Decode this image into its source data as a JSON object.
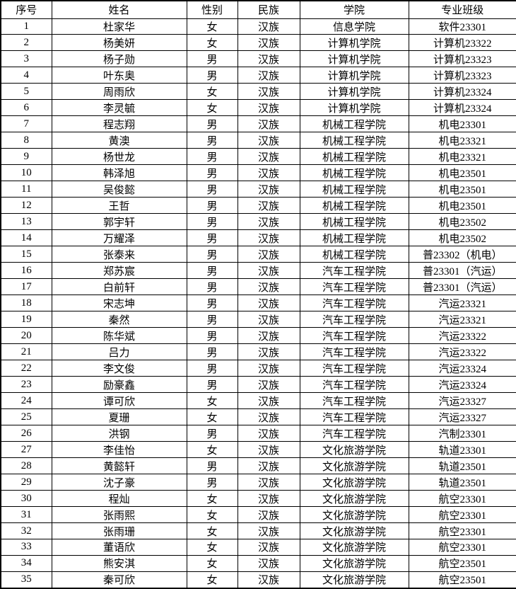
{
  "table": {
    "title": "student-roster",
    "colors": {
      "border": "#000000",
      "background": "#ffffff",
      "text": "#000000"
    },
    "columns": [
      "序号",
      "姓名",
      "性别",
      "民族",
      "学院",
      "专业班级"
    ],
    "rows": [
      [
        "1",
        "杜家华",
        "女",
        "汉族",
        "信息学院",
        "软件23301"
      ],
      [
        "2",
        "杨美妍",
        "女",
        "汉族",
        "计算机学院",
        "计算机23322"
      ],
      [
        "3",
        "杨子勋",
        "男",
        "汉族",
        "计算机学院",
        "计算机23323"
      ],
      [
        "4",
        "叶东奥",
        "男",
        "汉族",
        "计算机学院",
        "计算机23323"
      ],
      [
        "5",
        "周雨欣",
        "女",
        "汉族",
        "计算机学院",
        "计算机23324"
      ],
      [
        "6",
        "李灵毓",
        "女",
        "汉族",
        "计算机学院",
        "计算机23324"
      ],
      [
        "7",
        "程志翔",
        "男",
        "汉族",
        "机械工程学院",
        "机电23301"
      ],
      [
        "8",
        "黄澳",
        "男",
        "汉族",
        "机械工程学院",
        "机电23321"
      ],
      [
        "9",
        "杨世龙",
        "男",
        "汉族",
        "机械工程学院",
        "机电23321"
      ],
      [
        "10",
        "韩泽旭",
        "男",
        "汉族",
        "机械工程学院",
        "机电23501"
      ],
      [
        "11",
        "吴俊懿",
        "男",
        "汉族",
        "机械工程学院",
        "机电23501"
      ],
      [
        "12",
        "王哲",
        "男",
        "汉族",
        "机械工程学院",
        "机电23501"
      ],
      [
        "13",
        "郭宇轩",
        "男",
        "汉族",
        "机械工程学院",
        "机电23502"
      ],
      [
        "14",
        "万耀泽",
        "男",
        "汉族",
        "机械工程学院",
        "机电23502"
      ],
      [
        "15",
        "张泰来",
        "男",
        "汉族",
        "机械工程学院",
        "普23302（机电）"
      ],
      [
        "16",
        "郑苏宸",
        "男",
        "汉族",
        "汽车工程学院",
        "普23301（汽运）"
      ],
      [
        "17",
        "白前轩",
        "男",
        "汉族",
        "汽车工程学院",
        "普23301（汽运）"
      ],
      [
        "18",
        "宋志坤",
        "男",
        "汉族",
        "汽车工程学院",
        "汽运23321"
      ],
      [
        "19",
        "秦然",
        "男",
        "汉族",
        "汽车工程学院",
        "汽运23321"
      ],
      [
        "20",
        "陈华斌",
        "男",
        "汉族",
        "汽车工程学院",
        "汽运23322"
      ],
      [
        "21",
        "吕力",
        "男",
        "汉族",
        "汽车工程学院",
        "汽运23322"
      ],
      [
        "22",
        "李文俊",
        "男",
        "汉族",
        "汽车工程学院",
        "汽运23324"
      ],
      [
        "23",
        "励豪鑫",
        "男",
        "汉族",
        "汽车工程学院",
        "汽运23324"
      ],
      [
        "24",
        "谭可欣",
        "女",
        "汉族",
        "汽车工程学院",
        "汽运23327"
      ],
      [
        "25",
        "夏珊",
        "女",
        "汉族",
        "汽车工程学院",
        "汽运23327"
      ],
      [
        "26",
        "洪钢",
        "男",
        "汉族",
        "汽车工程学院",
        "汽制23301"
      ],
      [
        "27",
        "李佳怡",
        "女",
        "汉族",
        "文化旅游学院",
        "轨道23301"
      ],
      [
        "28",
        "黄懿轩",
        "男",
        "汉族",
        "文化旅游学院",
        "轨道23501"
      ],
      [
        "29",
        "沈子豪",
        "男",
        "汉族",
        "文化旅游学院",
        "轨道23501"
      ],
      [
        "30",
        "程灿",
        "女",
        "汉族",
        "文化旅游学院",
        "航空23301"
      ],
      [
        "31",
        "张雨熙",
        "女",
        "汉族",
        "文化旅游学院",
        "航空23301"
      ],
      [
        "32",
        "张雨珊",
        "女",
        "汉族",
        "文化旅游学院",
        "航空23301"
      ],
      [
        "33",
        "董语欣",
        "女",
        "汉族",
        "文化旅游学院",
        "航空23301"
      ],
      [
        "34",
        "熊安淇",
        "女",
        "汉族",
        "文化旅游学院",
        "航空23501"
      ],
      [
        "35",
        "秦可欣",
        "女",
        "汉族",
        "文化旅游学院",
        "航空23501"
      ]
    ]
  }
}
